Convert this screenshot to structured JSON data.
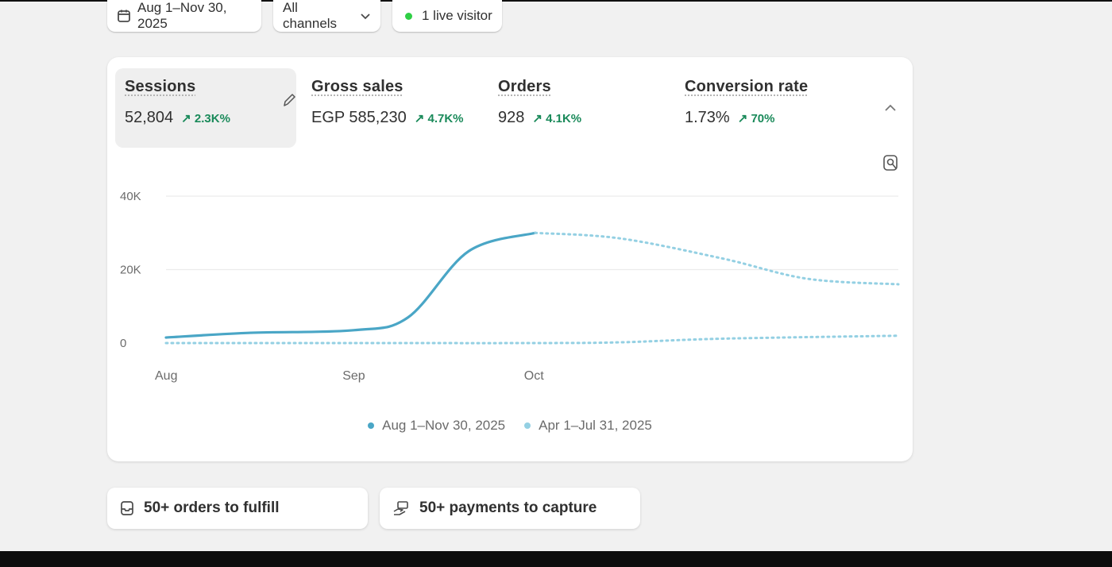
{
  "filters": {
    "date_range": "Aug 1–Nov 30, 2025",
    "channel": "All channels",
    "live_visitors": "1 live visitor"
  },
  "metrics": [
    {
      "label": "Sessions",
      "value": "52,804",
      "delta": "2.3K%"
    },
    {
      "label": "Gross sales",
      "value": "EGP 585,230",
      "delta": "4.7K%"
    },
    {
      "label": "Orders",
      "value": "928",
      "delta": "4.1K%"
    },
    {
      "label": "Conversion rate",
      "value": "1.73%",
      "delta": "70%"
    }
  ],
  "colors": {
    "accent": "#4aa6c6",
    "comparison": "#94d0e3",
    "positive": "#1a8a5a",
    "live": "#2fcf45"
  },
  "chart_data": {
    "type": "line",
    "title": "",
    "xlabel": "",
    "ylabel": "",
    "x_ticks": [
      "Aug",
      "Sep",
      "Oct"
    ],
    "y_ticks": [
      "0",
      "20K",
      "40K"
    ],
    "ylim": [
      0,
      40000
    ],
    "grid": true,
    "legend_position": "bottom",
    "series": [
      {
        "name": "Aug 1–Nov 30, 2025",
        "style": "solid",
        "x": [
          "Aug 1",
          "Aug 15",
          "Sep 1",
          "Sep 10",
          "Sep 20",
          "Oct 1"
        ],
        "values": [
          1500,
          2800,
          3500,
          7000,
          25000,
          30000
        ],
        "projected": {
          "x": [
            "Oct 1",
            "Oct 15",
            "Nov 1",
            "Nov 15",
            "Nov 30"
          ],
          "values": [
            30000,
            28500,
            23000,
            17500,
            16000
          ]
        }
      },
      {
        "name": "Apr 1–Jul 31, 2025",
        "style": "dotted",
        "x": [
          "Aug 1",
          "Sep 1",
          "Oct 1",
          "Oct 15",
          "Nov 1",
          "Nov 30"
        ],
        "values": [
          0,
          0,
          0,
          200,
          1200,
          2000
        ]
      }
    ]
  },
  "tasks": [
    {
      "label": "50+ orders to fulfill"
    },
    {
      "label": "50+ payments to capture"
    }
  ]
}
